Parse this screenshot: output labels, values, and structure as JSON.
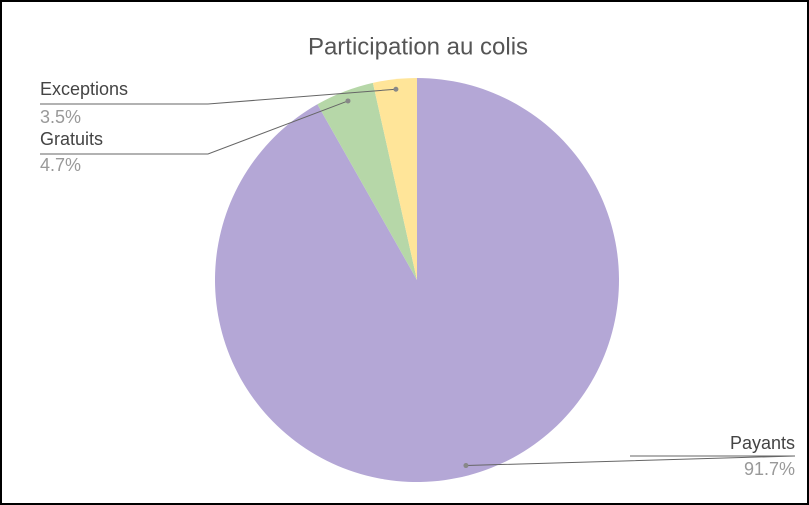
{
  "chart_data": {
    "type": "pie",
    "title": "Participation au colis",
    "categories": [
      "Payants",
      "Gratuits",
      "Exceptions"
    ],
    "values": [
      91.7,
      4.7,
      3.5
    ],
    "value_labels": [
      "91.7%",
      "4.7%",
      "3.5%"
    ],
    "colors": [
      "#b4a7d6",
      "#b6d7a8",
      "#ffe599"
    ]
  }
}
